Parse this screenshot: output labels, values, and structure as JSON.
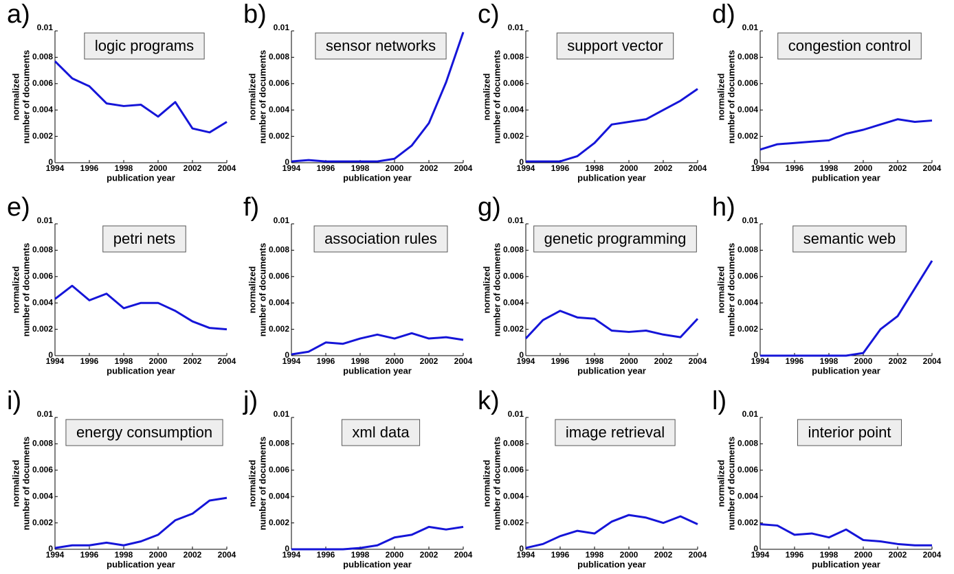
{
  "chart_data": [
    {
      "type": "line",
      "panel": "a)",
      "title": "logic programs",
      "xlabel": "publication year",
      "ylabel": [
        "normalized",
        "number of documents"
      ],
      "x": [
        1994,
        1995,
        1996,
        1997,
        1998,
        1999,
        2000,
        2001,
        2002,
        2003,
        2004
      ],
      "values": [
        0.0077,
        0.0064,
        0.0058,
        0.0045,
        0.0043,
        0.0044,
        0.0035,
        0.0046,
        0.0026,
        0.0023,
        0.0031
      ],
      "color": "#1515d8",
      "xlim": [
        1994,
        2004
      ],
      "ylim": [
        0,
        0.01
      ],
      "xticks": [
        1994,
        1996,
        1998,
        2000,
        2002,
        2004
      ],
      "yticks": [
        0,
        0.002,
        0.004,
        0.006,
        0.008,
        0.01
      ]
    },
    {
      "type": "line",
      "panel": "b)",
      "title": "sensor networks",
      "xlabel": "publication year",
      "ylabel": [
        "normalized",
        "number of documents"
      ],
      "x": [
        1994,
        1995,
        1996,
        1997,
        1998,
        1999,
        2000,
        2001,
        2002,
        2003,
        2004
      ],
      "values": [
        0.0001,
        0.0002,
        0.0001,
        0.0001,
        0.0001,
        0.0001,
        0.0003,
        0.0013,
        0.003,
        0.0061,
        0.0099
      ],
      "color": "#1515d8",
      "xlim": [
        1994,
        2004
      ],
      "ylim": [
        0,
        0.01
      ],
      "xticks": [
        1994,
        1996,
        1998,
        2000,
        2002,
        2004
      ],
      "yticks": [
        0,
        0.002,
        0.004,
        0.006,
        0.008,
        0.01
      ]
    },
    {
      "type": "line",
      "panel": "c)",
      "title": "support vector",
      "xlabel": "publication year",
      "ylabel": [
        "normalized",
        "number of documents"
      ],
      "x": [
        1994,
        1995,
        1996,
        1997,
        1998,
        1999,
        2000,
        2001,
        2002,
        2003,
        2004
      ],
      "values": [
        0.0001,
        0.0001,
        0.0001,
        0.0005,
        0.0015,
        0.0029,
        0.0031,
        0.0033,
        0.004,
        0.0047,
        0.0056
      ],
      "color": "#1515d8",
      "xlim": [
        1994,
        2004
      ],
      "ylim": [
        0,
        0.01
      ],
      "xticks": [
        1994,
        1996,
        1998,
        2000,
        2002,
        2004
      ],
      "yticks": [
        0,
        0.002,
        0.004,
        0.006,
        0.008,
        0.01
      ]
    },
    {
      "type": "line",
      "panel": "d)",
      "title": "congestion control",
      "xlabel": "publication year",
      "ylabel": [
        "normalized",
        "number of documents"
      ],
      "x": [
        1994,
        1995,
        1996,
        1997,
        1998,
        1999,
        2000,
        2001,
        2002,
        2003,
        2004
      ],
      "values": [
        0.001,
        0.0014,
        0.0015,
        0.0016,
        0.0017,
        0.0022,
        0.0025,
        0.0029,
        0.0033,
        0.0031,
        0.0032
      ],
      "color": "#1515d8",
      "xlim": [
        1994,
        2004
      ],
      "ylim": [
        0,
        0.01
      ],
      "xticks": [
        1994,
        1996,
        1998,
        2000,
        2002,
        2004
      ],
      "yticks": [
        0,
        0.002,
        0.004,
        0.006,
        0.008,
        0.01
      ]
    },
    {
      "type": "line",
      "panel": "e)",
      "title": "petri nets",
      "xlabel": "publication year",
      "ylabel": [
        "normalized",
        "number of documents"
      ],
      "x": [
        1994,
        1995,
        1996,
        1997,
        1998,
        1999,
        2000,
        2001,
        2002,
        2003,
        2004
      ],
      "values": [
        0.0043,
        0.0053,
        0.0042,
        0.0047,
        0.0036,
        0.004,
        0.004,
        0.0034,
        0.0026,
        0.0021,
        0.002
      ],
      "color": "#1515d8",
      "xlim": [
        1994,
        2004
      ],
      "ylim": [
        0,
        0.01
      ],
      "xticks": [
        1994,
        1996,
        1998,
        2000,
        2002,
        2004
      ],
      "yticks": [
        0,
        0.002,
        0.004,
        0.006,
        0.008,
        0.01
      ]
    },
    {
      "type": "line",
      "panel": "f)",
      "title": "association rules",
      "xlabel": "publication year",
      "ylabel": [
        "normalized",
        "number of documents"
      ],
      "x": [
        1994,
        1995,
        1996,
        1997,
        1998,
        1999,
        2000,
        2001,
        2002,
        2003,
        2004
      ],
      "values": [
        0.0001,
        0.0003,
        0.001,
        0.0009,
        0.0013,
        0.0016,
        0.0013,
        0.0017,
        0.0013,
        0.0014,
        0.0012
      ],
      "color": "#1515d8",
      "xlim": [
        1994,
        2004
      ],
      "ylim": [
        0,
        0.01
      ],
      "xticks": [
        1994,
        1996,
        1998,
        2000,
        2002,
        2004
      ],
      "yticks": [
        0,
        0.002,
        0.004,
        0.006,
        0.008,
        0.01
      ]
    },
    {
      "type": "line",
      "panel": "g)",
      "title": "genetic programming",
      "xlabel": "publication year",
      "ylabel": [
        "normalized",
        "number of documents"
      ],
      "x": [
        1994,
        1995,
        1996,
        1997,
        1998,
        1999,
        2000,
        2001,
        2002,
        2003,
        2004
      ],
      "values": [
        0.0013,
        0.0027,
        0.0034,
        0.0029,
        0.0028,
        0.0019,
        0.0018,
        0.0019,
        0.0016,
        0.0014,
        0.0028
      ],
      "color": "#1515d8",
      "xlim": [
        1994,
        2004
      ],
      "ylim": [
        0,
        0.01
      ],
      "xticks": [
        1994,
        1996,
        1998,
        2000,
        2002,
        2004
      ],
      "yticks": [
        0,
        0.002,
        0.004,
        0.006,
        0.008,
        0.01
      ]
    },
    {
      "type": "line",
      "panel": "h)",
      "title": "semantic web",
      "xlabel": "publication year",
      "ylabel": [
        "normalized",
        "number of documents"
      ],
      "x": [
        1994,
        1995,
        1996,
        1997,
        1998,
        1999,
        2000,
        2001,
        2002,
        2003,
        2004
      ],
      "values": [
        0,
        0,
        0,
        0,
        0,
        0,
        0.0002,
        0.002,
        0.003,
        0.0051,
        0.0072
      ],
      "color": "#1515d8",
      "xlim": [
        1994,
        2004
      ],
      "ylim": [
        0,
        0.01
      ],
      "xticks": [
        1994,
        1996,
        1998,
        2000,
        2002,
        2004
      ],
      "yticks": [
        0,
        0.002,
        0.004,
        0.006,
        0.008,
        0.01
      ]
    },
    {
      "type": "line",
      "panel": "i)",
      "title": "energy consumption",
      "xlabel": "publication year",
      "ylabel": [
        "normalized",
        "number of documents"
      ],
      "x": [
        1994,
        1995,
        1996,
        1997,
        1998,
        1999,
        2000,
        2001,
        2002,
        2003,
        2004
      ],
      "values": [
        0.0001,
        0.0003,
        0.0003,
        0.0005,
        0.0003,
        0.0006,
        0.0011,
        0.0022,
        0.0027,
        0.0037,
        0.0039
      ],
      "color": "#1515d8",
      "xlim": [
        1994,
        2004
      ],
      "ylim": [
        0,
        0.01
      ],
      "xticks": [
        1994,
        1996,
        1998,
        2000,
        2002,
        2004
      ],
      "yticks": [
        0,
        0.002,
        0.004,
        0.006,
        0.008,
        0.01
      ]
    },
    {
      "type": "line",
      "panel": "j)",
      "title": "xml data",
      "xlabel": "publication year",
      "ylabel": [
        "normalized",
        "number of documents"
      ],
      "x": [
        1994,
        1995,
        1996,
        1997,
        1998,
        1999,
        2000,
        2001,
        2002,
        2003,
        2004
      ],
      "values": [
        0,
        0,
        0,
        0,
        0.0001,
        0.0003,
        0.0009,
        0.0011,
        0.0017,
        0.0015,
        0.0017
      ],
      "color": "#1515d8",
      "xlim": [
        1994,
        2004
      ],
      "ylim": [
        0,
        0.01
      ],
      "xticks": [
        1994,
        1996,
        1998,
        2000,
        2002,
        2004
      ],
      "yticks": [
        0,
        0.002,
        0.004,
        0.006,
        0.008,
        0.01
      ]
    },
    {
      "type": "line",
      "panel": "k)",
      "title": "image retrieval",
      "xlabel": "publication year",
      "ylabel": [
        "normalized",
        "number of documents"
      ],
      "x": [
        1994,
        1995,
        1996,
        1997,
        1998,
        1999,
        2000,
        2001,
        2002,
        2003,
        2004
      ],
      "values": [
        0.0001,
        0.0004,
        0.001,
        0.0014,
        0.0012,
        0.0021,
        0.0026,
        0.0024,
        0.002,
        0.0025,
        0.0019
      ],
      "color": "#1515d8",
      "xlim": [
        1994,
        2004
      ],
      "ylim": [
        0,
        0.01
      ],
      "xticks": [
        1994,
        1996,
        1998,
        2000,
        2002,
        2004
      ],
      "yticks": [
        0,
        0.002,
        0.004,
        0.006,
        0.008,
        0.01
      ]
    },
    {
      "type": "line",
      "panel": "l)",
      "title": "interior point",
      "xlabel": "publication year",
      "ylabel": [
        "normalized",
        "number of documents"
      ],
      "x": [
        1994,
        1995,
        1996,
        1997,
        1998,
        1999,
        2000,
        2001,
        2002,
        2003,
        2004
      ],
      "values": [
        0.0019,
        0.0018,
        0.0011,
        0.0012,
        0.0009,
        0.0015,
        0.0007,
        0.0006,
        0.0004,
        0.0003,
        0.0003
      ],
      "color": "#1515d8",
      "xlim": [
        1994,
        2004
      ],
      "ylim": [
        0,
        0.01
      ],
      "xticks": [
        1994,
        1996,
        1998,
        2000,
        2002,
        2004
      ],
      "yticks": [
        0,
        0.002,
        0.004,
        0.006,
        0.008,
        0.01
      ]
    }
  ]
}
